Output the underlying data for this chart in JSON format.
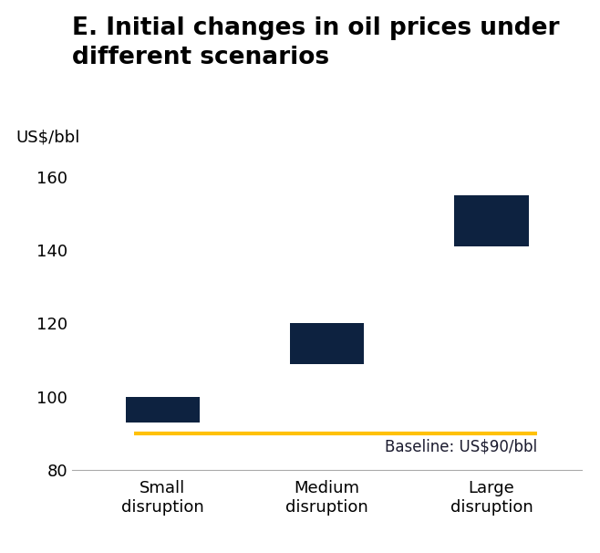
{
  "title": "E. Initial changes in oil prices under\ndifferent scenarios",
  "ylabel": "US$/bbl",
  "ylim": [
    80,
    165
  ],
  "yticks": [
    80,
    100,
    120,
    140,
    160
  ],
  "categories": [
    "Small\ndisruption",
    "Medium\ndisruption",
    "Large\ndisruption"
  ],
  "bar_bottoms": [
    93,
    109,
    141
  ],
  "bar_tops": [
    100,
    120,
    155
  ],
  "bar_color": "#0d2240",
  "baseline_y": 90,
  "baseline_label": "Baseline: US$90/bbl",
  "baseline_color": "#FFC107",
  "baseline_linewidth": 3.0,
  "background_color": "#ffffff",
  "title_fontsize": 19,
  "label_fontsize": 13,
  "tick_fontsize": 13,
  "baseline_label_fontsize": 12,
  "bar_width": 0.45
}
